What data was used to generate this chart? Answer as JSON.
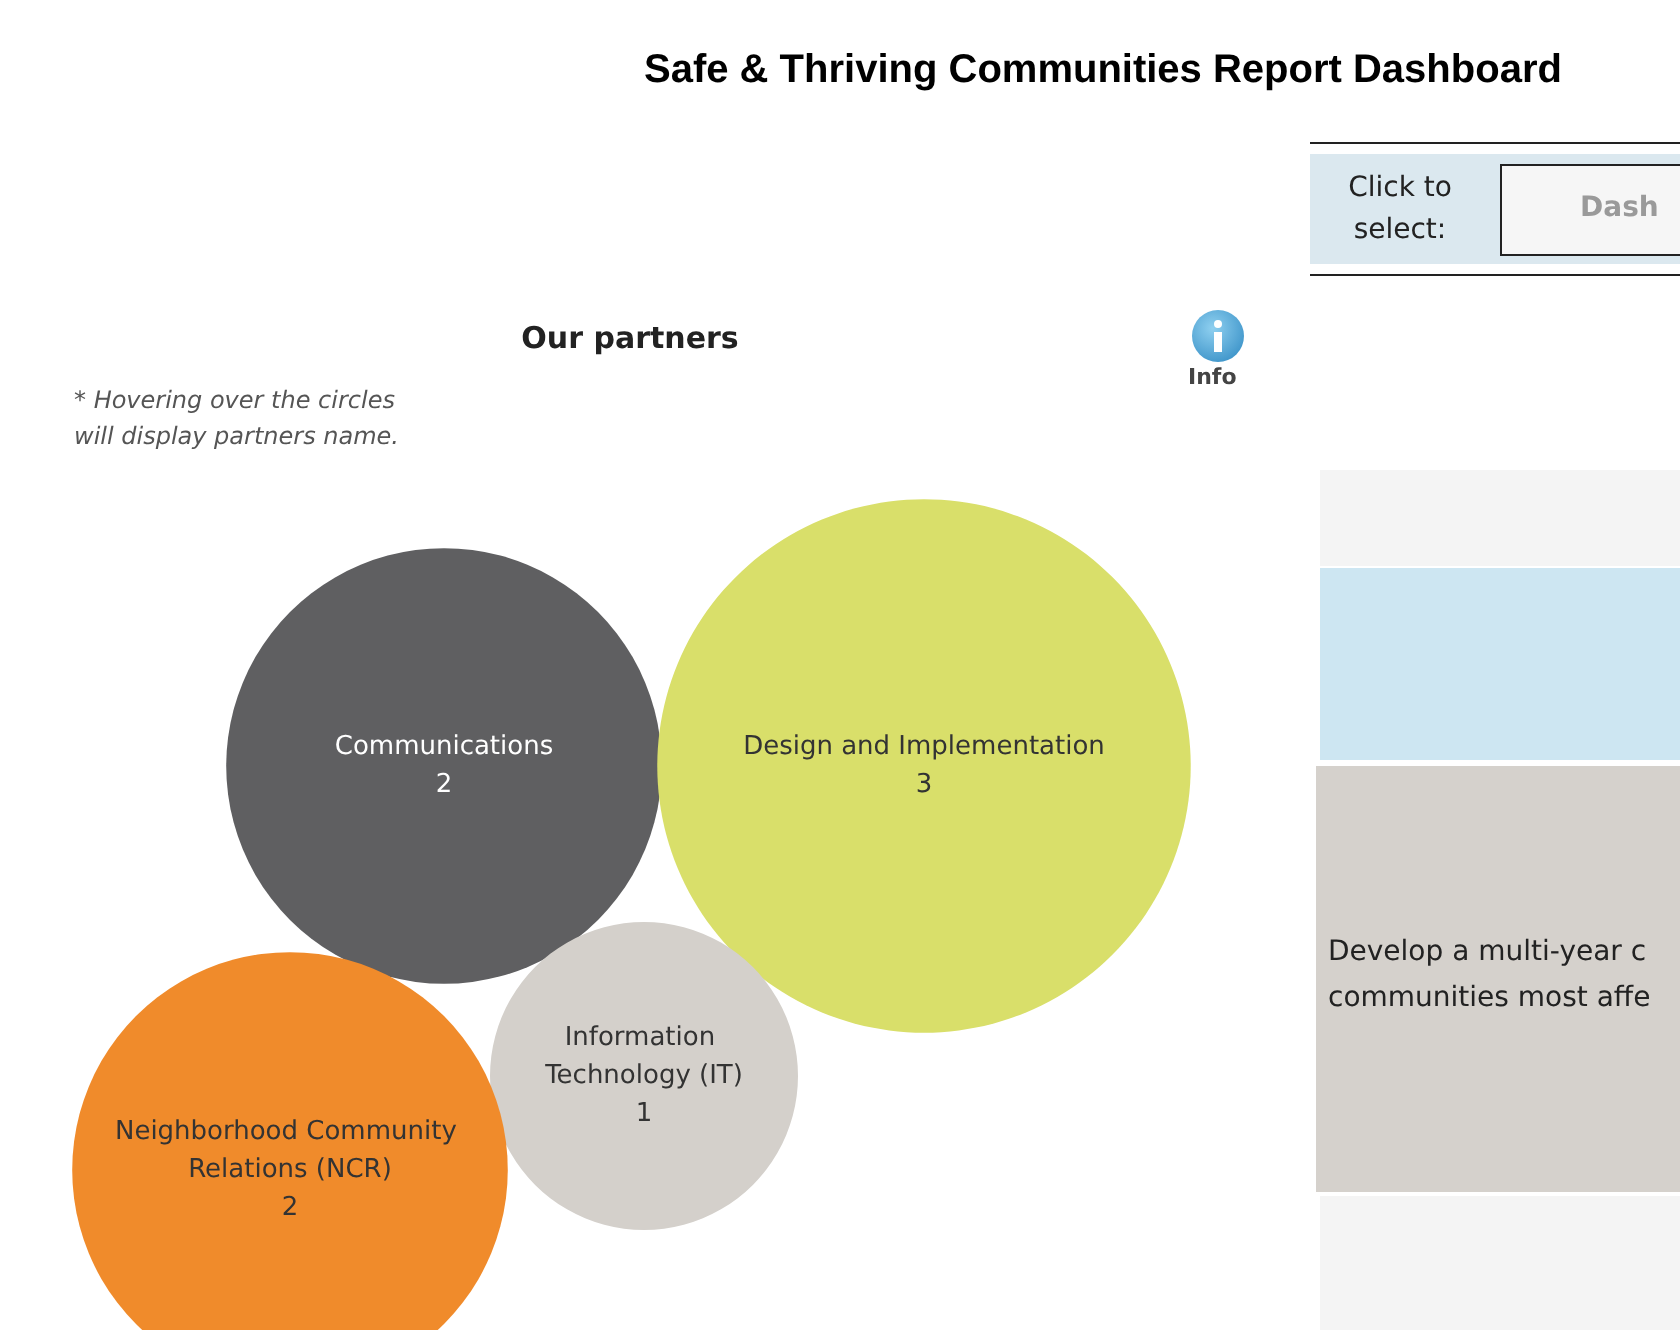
{
  "chart_data": {
    "type": "other",
    "title": "Safe & Thriving Communities Report Dashboard",
    "subtitle": "Our partners",
    "annotations": [
      "* Hovering over the circles will display partners name.",
      "Info",
      "Click to select:",
      "Dash",
      "Develop a multi-year c",
      "communities most affe"
    ],
    "categories": [
      "Communications",
      "Design and Implementation",
      "Information Technology (IT)",
      "Neighborhood Community Relations (NCR)"
    ],
    "values": [
      2,
      3,
      1,
      2
    ],
    "colors": [
      "#5f5f61",
      "#d9df6a",
      "#d4d0cb",
      "#f08b2b"
    ],
    "data_labels": true
  }
}
